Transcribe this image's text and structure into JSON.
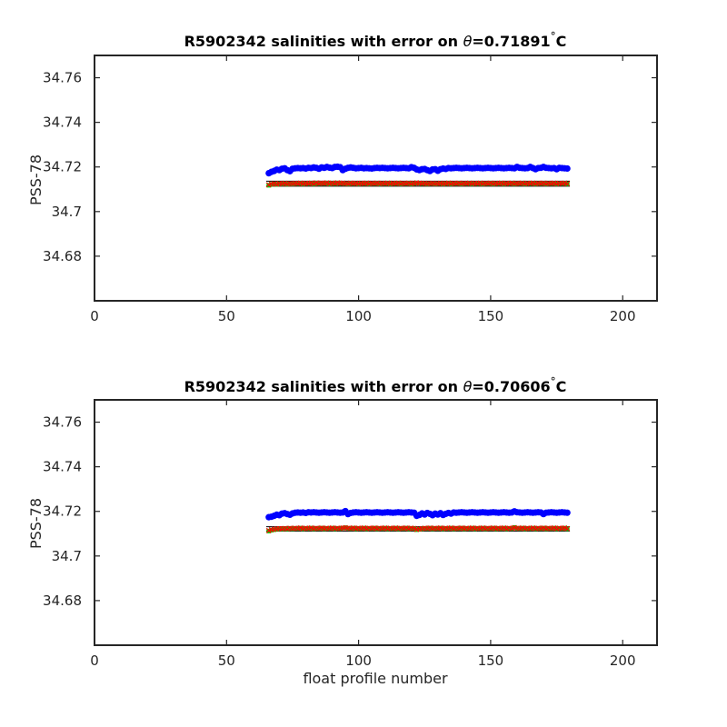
{
  "chart_data": [
    {
      "type": "scatter",
      "title_prefix": "R5902342 salinities with error on ",
      "title_symbol": "θ",
      "title_value": "=0.71891",
      "title_degree": "°",
      "title_unit": "C",
      "xlabel": "",
      "ylabel": "PSS-78",
      "xlim": [
        0,
        213
      ],
      "ylim": [
        34.66,
        34.77
      ],
      "xticks": [
        "0",
        "50",
        "100",
        "150",
        "200"
      ],
      "xtick_values": [
        0,
        50,
        100,
        150,
        200
      ],
      "yticks": [
        "34.68",
        "34.7",
        "34.72",
        "34.74",
        "34.76"
      ],
      "ytick_values": [
        34.68,
        34.7,
        34.72,
        34.74,
        34.76
      ],
      "x_start": 66,
      "x_end": 179,
      "series": [
        {
          "color": "#0000ff",
          "marker": "circle",
          "values": [
            34.7172,
            34.7178,
            34.7182,
            34.7188,
            34.7186,
            34.7192,
            34.7194,
            34.7186,
            34.7181,
            34.7192,
            34.7194,
            34.7195,
            34.7194,
            34.7195,
            34.7193,
            34.7196,
            34.7195,
            34.7198,
            34.7196,
            34.7192,
            34.7198,
            34.7196,
            34.72,
            34.7197,
            34.7195,
            34.72,
            34.7201,
            34.7199,
            34.7186,
            34.7192,
            34.7196,
            34.7198,
            34.7196,
            34.7194,
            34.7195,
            34.7196,
            34.7194,
            34.7195,
            34.7194,
            34.7193,
            34.7195,
            34.7196,
            34.7195,
            34.7196,
            34.7195,
            34.7194,
            34.7195,
            34.7196,
            34.7195,
            34.7194,
            34.7195,
            34.7196,
            34.7195,
            34.7194,
            34.7199,
            34.7196,
            34.7189,
            34.7186,
            34.719,
            34.7191,
            34.7186,
            34.7182,
            34.7189,
            34.719,
            34.7183,
            34.719,
            34.7193,
            34.7191,
            34.7195,
            34.7194,
            34.7195,
            34.7196,
            34.7195,
            34.7194,
            34.7195,
            34.7196,
            34.7195,
            34.7194,
            34.7195,
            34.7196,
            34.7195,
            34.7194,
            34.7195,
            34.7196,
            34.7195,
            34.7194,
            34.7195,
            34.7196,
            34.7195,
            34.7194,
            34.7195,
            34.7196,
            34.7195,
            34.7194,
            34.72,
            34.7196,
            34.7195,
            34.7194,
            34.7195,
            34.72,
            34.7195,
            34.719,
            34.7195,
            34.7196,
            34.72,
            34.7196,
            34.7195,
            34.7194,
            34.7195,
            34.719,
            34.7196,
            34.7195,
            34.7194,
            34.7193
          ]
        },
        {
          "color": "#00cc00",
          "marker": "square",
          "values": [
            34.7118,
            34.7122,
            34.7124,
            34.7122,
            34.7125,
            34.7124,
            34.7126,
            34.7123,
            34.7125,
            34.7124,
            34.7126,
            34.7125,
            34.7127,
            34.7124,
            34.7126,
            34.7125,
            34.7127,
            34.7124,
            34.7128,
            34.7125,
            34.7127,
            34.7126,
            34.7128,
            34.7124,
            34.7127,
            34.7125,
            34.7128,
            34.7126,
            34.7127,
            34.7125,
            34.7124,
            34.7127,
            34.7125,
            34.7126,
            34.7124,
            34.7126,
            34.7125,
            34.7127,
            34.7124,
            34.7126,
            34.7125,
            34.7127,
            34.7124,
            34.7126,
            34.7125,
            34.7127,
            34.7124,
            34.7126,
            34.7125,
            34.7127,
            34.7124,
            34.7126,
            34.7125,
            34.7127,
            34.7124,
            34.7126,
            34.7128,
            34.7127,
            34.7125,
            34.7126,
            34.7124,
            34.7125,
            34.7126,
            34.7124,
            34.7125,
            34.7126,
            34.7124,
            34.7125,
            34.7127,
            34.7124,
            34.7126,
            34.7125,
            34.7127,
            34.7124,
            34.7126,
            34.7125,
            34.7127,
            34.7124,
            34.7126,
            34.7125,
            34.7127,
            34.7124,
            34.7126,
            34.7125,
            34.7127,
            34.7124,
            34.7126,
            34.7125,
            34.7127,
            34.7124,
            34.7126,
            34.7125,
            34.7127,
            34.7124,
            34.7126,
            34.7125,
            34.7127,
            34.7124,
            34.7126,
            34.7125,
            34.7127,
            34.7124,
            34.7126,
            34.7125,
            34.7127,
            34.7124,
            34.7126,
            34.7125,
            34.7127,
            34.7124,
            34.7126,
            34.7125,
            34.7127,
            34.7124
          ]
        },
        {
          "color": "#ff0000",
          "marker": "cross",
          "values": [
            34.712,
            34.7124,
            34.7125,
            34.7123,
            34.7126,
            34.7125,
            34.7127,
            34.7124,
            34.7126,
            34.7125,
            34.7127,
            34.7126,
            34.7128,
            34.7125,
            34.7127,
            34.7126,
            34.7128,
            34.7125,
            34.7129,
            34.7126,
            34.7128,
            34.7127,
            34.7129,
            34.7125,
            34.7128,
            34.7126,
            34.7129,
            34.7127,
            34.7128,
            34.7126,
            34.7125,
            34.7128,
            34.7126,
            34.7127,
            34.7125,
            34.7127,
            34.7126,
            34.7128,
            34.7125,
            34.7127,
            34.7126,
            34.7128,
            34.7125,
            34.7127,
            34.7126,
            34.7128,
            34.7125,
            34.7127,
            34.7126,
            34.7128,
            34.7125,
            34.7127,
            34.7126,
            34.7128,
            34.7125,
            34.7127,
            34.7129,
            34.7128,
            34.7126,
            34.7127,
            34.7125,
            34.7126,
            34.7127,
            34.7125,
            34.7126,
            34.7127,
            34.7125,
            34.7126,
            34.7128,
            34.7125,
            34.7127,
            34.7126,
            34.7128,
            34.7125,
            34.7127,
            34.7126,
            34.7128,
            34.7125,
            34.7127,
            34.7126,
            34.7128,
            34.7125,
            34.7127,
            34.7126,
            34.7128,
            34.7125,
            34.7127,
            34.7126,
            34.7128,
            34.7125,
            34.7127,
            34.7126,
            34.7128,
            34.7125,
            34.7127,
            34.7126,
            34.7128,
            34.7125,
            34.7127,
            34.7126,
            34.7128,
            34.7125,
            34.7127,
            34.7126,
            34.7128,
            34.7125,
            34.7127,
            34.7126,
            34.7128,
            34.7125,
            34.7127,
            34.7126,
            34.7128,
            34.7125
          ]
        }
      ],
      "error_band": {
        "color": "#000000",
        "upper": 34.7136,
        "lower": 34.7114
      }
    },
    {
      "type": "scatter",
      "title_prefix": "R5902342 salinities with error on ",
      "title_symbol": "θ",
      "title_value": "=0.70606",
      "title_degree": "°",
      "title_unit": "C",
      "xlabel": "float profile number",
      "ylabel": "PSS-78",
      "xlim": [
        0,
        213
      ],
      "ylim": [
        34.66,
        34.77
      ],
      "xticks": [
        "0",
        "50",
        "100",
        "150",
        "200"
      ],
      "xtick_values": [
        0,
        50,
        100,
        150,
        200
      ],
      "yticks": [
        "34.68",
        "34.7",
        "34.72",
        "34.74",
        "34.76"
      ],
      "ytick_values": [
        34.68,
        34.7,
        34.72,
        34.74,
        34.76
      ],
      "x_start": 66,
      "x_end": 179,
      "series": [
        {
          "color": "#0000ff",
          "marker": "circle",
          "values": [
            34.7174,
            34.7176,
            34.718,
            34.7185,
            34.7183,
            34.719,
            34.7192,
            34.7188,
            34.7185,
            34.7191,
            34.7194,
            34.7195,
            34.7194,
            34.7195,
            34.7193,
            34.7196,
            34.7195,
            34.7196,
            34.7195,
            34.7194,
            34.7195,
            34.7196,
            34.7195,
            34.7194,
            34.7195,
            34.7196,
            34.7195,
            34.7194,
            34.7195,
            34.7201,
            34.7188,
            34.7193,
            34.7195,
            34.7196,
            34.7195,
            34.7194,
            34.7195,
            34.7196,
            34.7195,
            34.7194,
            34.7195,
            34.7196,
            34.7195,
            34.7194,
            34.7195,
            34.7196,
            34.7195,
            34.7194,
            34.7195,
            34.7196,
            34.7195,
            34.7194,
            34.7195,
            34.7196,
            34.7195,
            34.7194,
            34.718,
            34.7184,
            34.7191,
            34.7186,
            34.7193,
            34.7189,
            34.7183,
            34.719,
            34.7186,
            34.7192,
            34.7184,
            34.7189,
            34.7193,
            34.719,
            34.7195,
            34.7194,
            34.7195,
            34.7196,
            34.7195,
            34.7194,
            34.7195,
            34.7196,
            34.7195,
            34.7194,
            34.7195,
            34.7196,
            34.7195,
            34.7194,
            34.7195,
            34.7196,
            34.7195,
            34.7194,
            34.7195,
            34.7196,
            34.7195,
            34.7194,
            34.7195,
            34.72,
            34.7196,
            34.7195,
            34.7194,
            34.7195,
            34.7196,
            34.7195,
            34.7194,
            34.7195,
            34.7196,
            34.7195,
            34.7188,
            34.7194,
            34.7195,
            34.7196,
            34.7195,
            34.7194,
            34.7195,
            34.7196,
            34.7195,
            34.7194
          ]
        },
        {
          "color": "#00cc00",
          "marker": "square",
          "values": [
            34.7112,
            34.7116,
            34.7118,
            34.712,
            34.7122,
            34.7121,
            34.7123,
            34.7121,
            34.7124,
            34.7122,
            34.7124,
            34.7123,
            34.7125,
            34.7122,
            34.7124,
            34.7123,
            34.7125,
            34.7122,
            34.7124,
            34.7123,
            34.7125,
            34.7122,
            34.7124,
            34.7123,
            34.7125,
            34.7122,
            34.7124,
            34.7123,
            34.7125,
            34.7127,
            34.7124,
            34.7123,
            34.7125,
            34.7122,
            34.7124,
            34.7123,
            34.7125,
            34.7122,
            34.7124,
            34.7123,
            34.7125,
            34.7122,
            34.7124,
            34.7123,
            34.7125,
            34.7122,
            34.7124,
            34.7123,
            34.7125,
            34.7122,
            34.7124,
            34.7123,
            34.7125,
            34.7122,
            34.7124,
            34.7123,
            34.7118,
            34.712,
            34.7122,
            34.7124,
            34.7123,
            34.7125,
            34.7122,
            34.7124,
            34.7123,
            34.7125,
            34.7122,
            34.7124,
            34.7123,
            34.7125,
            34.7122,
            34.7124,
            34.7123,
            34.7125,
            34.7122,
            34.7124,
            34.7123,
            34.7125,
            34.7122,
            34.7124,
            34.7123,
            34.7125,
            34.7122,
            34.7124,
            34.7123,
            34.7125,
            34.7122,
            34.7124,
            34.7123,
            34.7125,
            34.7122,
            34.7124,
            34.7123,
            34.7128,
            34.7124,
            34.7123,
            34.7125,
            34.7122,
            34.7124,
            34.7123,
            34.7125,
            34.7122,
            34.7124,
            34.7123,
            34.7125,
            34.7122,
            34.7124,
            34.7123,
            34.7125,
            34.7122,
            34.7124,
            34.7123,
            34.7125,
            34.7122
          ]
        },
        {
          "color": "#ff0000",
          "marker": "cross",
          "values": [
            34.7114,
            34.7118,
            34.712,
            34.7122,
            34.7123,
            34.7122,
            34.7124,
            34.7122,
            34.7125,
            34.7123,
            34.7125,
            34.7124,
            34.7126,
            34.7123,
            34.7125,
            34.7124,
            34.7126,
            34.7123,
            34.7125,
            34.7124,
            34.7126,
            34.7123,
            34.7125,
            34.7124,
            34.7126,
            34.7123,
            34.7125,
            34.7124,
            34.7126,
            34.7127,
            34.7125,
            34.7124,
            34.7126,
            34.7123,
            34.7125,
            34.7124,
            34.7126,
            34.7123,
            34.7125,
            34.7124,
            34.7126,
            34.7123,
            34.7125,
            34.7124,
            34.7126,
            34.7123,
            34.7125,
            34.7124,
            34.7126,
            34.7123,
            34.7125,
            34.7124,
            34.7126,
            34.7123,
            34.7125,
            34.7124,
            34.7119,
            34.7121,
            34.7123,
            34.7125,
            34.7124,
            34.7126,
            34.7123,
            34.7125,
            34.7124,
            34.7126,
            34.7123,
            34.7125,
            34.7124,
            34.7126,
            34.7123,
            34.7125,
            34.7124,
            34.7126,
            34.7123,
            34.7125,
            34.7124,
            34.7126,
            34.7123,
            34.7125,
            34.7124,
            34.7126,
            34.7123,
            34.7125,
            34.7124,
            34.7126,
            34.7123,
            34.7125,
            34.7124,
            34.7126,
            34.7123,
            34.7125,
            34.7124,
            34.7127,
            34.7125,
            34.7124,
            34.7126,
            34.7123,
            34.7125,
            34.7124,
            34.7126,
            34.7123,
            34.7125,
            34.7124,
            34.7126,
            34.7123,
            34.7125,
            34.7124,
            34.7126,
            34.7123,
            34.7125,
            34.7124,
            34.7126,
            34.7123
          ]
        }
      ],
      "error_band": {
        "color": "#000000",
        "upper": 34.7131,
        "lower": 34.7112
      }
    }
  ]
}
